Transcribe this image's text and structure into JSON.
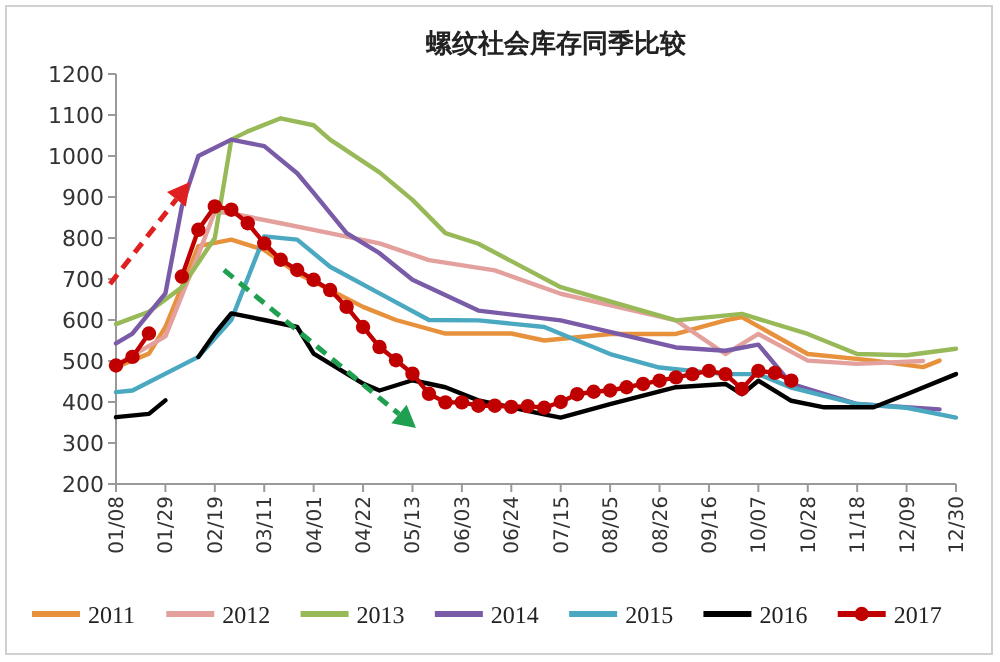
{
  "chart_data": {
    "type": "line",
    "title": "螺纹社会库存同季比较",
    "xlim": [
      "--01-08",
      "--12-30"
    ],
    "xticks": [
      {
        "value": "--01-08",
        "label": "01/08"
      },
      {
        "value": "--01-29",
        "label": "01/29"
      },
      {
        "value": "--02-19",
        "label": "02/19"
      },
      {
        "value": "--03-11",
        "label": "03/11"
      },
      {
        "value": "--04-01",
        "label": "04/01"
      },
      {
        "value": "--04-22",
        "label": "04/22"
      },
      {
        "value": "--05-13",
        "label": "05/13"
      },
      {
        "value": "--06-03",
        "label": "06/03"
      },
      {
        "value": "--06-24",
        "label": "06/24"
      },
      {
        "value": "--07-15",
        "label": "07/15"
      },
      {
        "value": "--08-05",
        "label": "08/05"
      },
      {
        "value": "--08-26",
        "label": "08/26"
      },
      {
        "value": "--09-16",
        "label": "09/16"
      },
      {
        "value": "--10-07",
        "label": "10/07"
      },
      {
        "value": "--10-28",
        "label": "10/28"
      },
      {
        "value": "--11-18",
        "label": "11/18"
      },
      {
        "value": "--12-09",
        "label": "12/09"
      },
      {
        "value": "--12-30",
        "label": "12/30"
      }
    ],
    "ylim": [
      200,
      1200
    ],
    "yticks": [
      200,
      300,
      400,
      500,
      600,
      700,
      800,
      900,
      1000,
      1100,
      1200
    ],
    "grid": false,
    "legend": "bottom",
    "marker": "none",
    "line_style": "solid",
    "series": [
      {
        "name": "2011",
        "color": "#e8913c",
        "x": [
          "--01-08",
          "--01-22",
          "--01-29",
          "--02-12",
          "--02-26",
          "--03-11",
          "--03-25",
          "--04-22",
          "--05-06",
          "--05-27",
          "--06-24",
          "--07-08",
          "--08-05",
          "--09-02",
          "--09-23",
          "--09-30",
          "--10-28",
          "--11-25",
          "--12-16",
          "--12-23"
        ],
        "values": [
          485,
          518,
          583,
          780,
          796,
          771,
          714,
          632,
          600,
          567,
          567,
          550,
          566,
          566,
          599,
          607,
          517,
          501,
          485,
          501
        ]
      },
      {
        "name": "2012",
        "color": "#e3a09c",
        "x": [
          "--01-08",
          "--01-29",
          "--02-12",
          "--02-19",
          "--02-26",
          "--03-18",
          "--04-01",
          "--04-29",
          "--05-20",
          "--06-17",
          "--07-15",
          "--09-02",
          "--09-23",
          "--10-07",
          "--10-28",
          "--11-18",
          "--12-16"
        ],
        "values": [
          490,
          560,
          760,
          864,
          860,
          836,
          820,
          787,
          746,
          721,
          664,
          599,
          517,
          566,
          501,
          493,
          500
        ]
      },
      {
        "name": "2013",
        "color": "#97b957",
        "x": [
          "--01-08",
          "--01-22",
          "--02-05",
          "--02-19",
          "--02-26",
          "--03-04",
          "--03-18",
          "--04-01",
          "--04-08",
          "--04-29",
          "--05-13",
          "--05-27",
          "--06-10",
          "--07-15",
          "--09-02",
          "--09-30",
          "--10-28",
          "--11-18",
          "--12-09",
          "--12-30"
        ],
        "values": [
          590,
          620,
          680,
          800,
          1040,
          1060,
          1092,
          1075,
          1040,
          960,
          893,
          812,
          786,
          680,
          599,
          615,
          566,
          517,
          514,
          530
        ]
      },
      {
        "name": "2014",
        "color": "#7a5ba8",
        "x": [
          "--01-08",
          "--01-15",
          "--01-29",
          "--02-05",
          "--02-12",
          "--02-26",
          "--03-11",
          "--03-25",
          "--04-01",
          "--04-15",
          "--04-29",
          "--05-13",
          "--06-10",
          "--07-15",
          "--09-02",
          "--09-23",
          "--10-07",
          "--10-21",
          "--11-18",
          "--12-23"
        ],
        "values": [
          543,
          567,
          665,
          877,
          1000,
          1040,
          1024,
          958,
          910,
          812,
          763,
          698,
          623,
          599,
          533,
          525,
          540,
          444,
          395,
          382
        ]
      },
      {
        "name": "2015",
        "color": "#4aa9c0",
        "x": [
          "--01-08",
          "--01-15",
          "--02-12",
          "--02-26",
          "--03-11",
          "--03-25",
          "--04-08",
          "--04-29",
          "--05-20",
          "--06-10",
          "--07-08",
          "--08-05",
          "--08-26",
          "--09-09",
          "--09-23",
          "--10-07",
          "--10-21",
          "--11-18",
          "--12-09",
          "--12-30"
        ],
        "values": [
          424,
          428,
          510,
          600,
          804,
          796,
          730,
          665,
          600,
          599,
          583,
          517,
          484,
          476,
          468,
          468,
          435,
          395,
          386,
          362
        ]
      },
      {
        "name": "2016",
        "color": "#000000",
        "x": [
          "--01-08",
          "--01-22",
          "--01-29",
          "--02-05",
          "--02-12",
          "--02-19",
          "--02-26",
          "--03-11",
          "--03-25",
          "--04-01",
          "--04-22",
          "--04-29",
          "--05-13",
          "--05-27",
          "--06-10",
          "--07-08",
          "--07-15",
          "--08-05",
          "--09-02",
          "--09-23",
          "--09-30",
          "--10-07",
          "--10-21",
          "--11-04",
          "--11-25",
          "--12-09",
          "--12-30"
        ],
        "values": [
          363,
          371,
          404,
          null,
          510,
          567,
          616,
          600,
          583,
          518,
          445,
          428,
          453,
          436,
          404,
          370,
          362,
          395,
          436,
          444,
          419,
          452,
          403,
          387,
          387,
          419,
          468
        ]
      },
      {
        "name": "2017",
        "color": "#c00000",
        "marker": "circle",
        "x": [
          "--01-08",
          "--01-15",
          "--01-22",
          "--01-29",
          "--02-05",
          "--02-12",
          "--02-19",
          "--02-26",
          "--03-04",
          "--03-11",
          "--03-18",
          "--03-25",
          "--04-01",
          "--04-08",
          "--04-15",
          "--04-22",
          "--04-29",
          "--05-06",
          "--05-13",
          "--05-20",
          "--05-27",
          "--06-03",
          "--06-10",
          "--06-17",
          "--06-24",
          "--07-01",
          "--07-08",
          "--07-15",
          "--07-22",
          "--07-29",
          "--08-05",
          "--08-12",
          "--08-19",
          "--08-26",
          "--09-02",
          "--09-09",
          "--09-16",
          "--09-23",
          "--09-30",
          "--10-07",
          "--10-14",
          "--10-21"
        ],
        "values": [
          489,
          510,
          567,
          null,
          706,
          820,
          877,
          869,
          836,
          787,
          747,
          722,
          698,
          673,
          632,
          583,
          534,
          502,
          469,
          420,
          399,
          399,
          391,
          391,
          388,
          390,
          386,
          400,
          419,
          425,
          428,
          436,
          444,
          452,
          460,
          468,
          476,
          468,
          432,
          476,
          471,
          452
        ]
      }
    ]
  }
}
